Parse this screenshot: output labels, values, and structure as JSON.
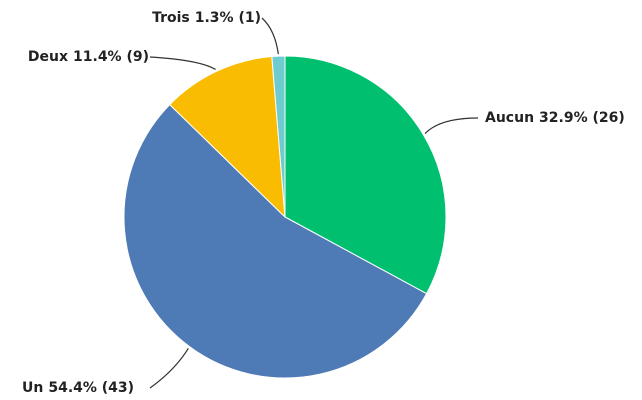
{
  "chart_data": {
    "type": "pie",
    "categories": [
      "Aucun",
      "Un",
      "Deux",
      "Trois"
    ],
    "values": [
      32.9,
      54.4,
      11.4,
      1.3
    ],
    "value_labels": [
      "32.9% (26)",
      "54.4% (43)",
      "11.4% (9)",
      "1.3% (1)"
    ],
    "colors": [
      "#00c06f",
      "#4e7ab5",
      "#f9bc00",
      "#6ecbd0"
    ]
  }
}
